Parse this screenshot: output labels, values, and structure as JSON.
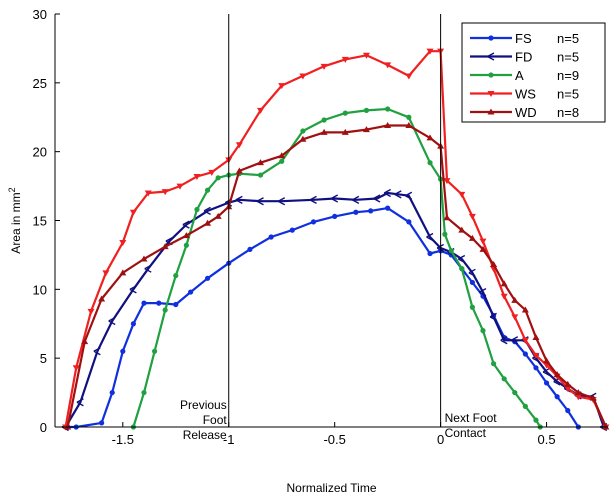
{
  "chart_data": {
    "type": "line",
    "xlabel": "Normalized Time",
    "ylabel": "Area in mm",
    "ylabel_superscript": "2",
    "xlim": [
      -1.82,
      0.79
    ],
    "ylim": [
      0,
      30
    ],
    "xticks": [
      -1.5,
      -1,
      -0.5,
      0,
      0.5
    ],
    "xtick_labels": [
      "-1.5",
      "-1",
      "-0.5",
      "0",
      "0.5"
    ],
    "yticks": [
      0,
      5,
      10,
      15,
      20,
      25,
      30
    ],
    "ytick_labels": [
      "0",
      "5",
      "10",
      "15",
      "20",
      "25",
      "30"
    ],
    "grid": false,
    "legend_position": "top-right",
    "vlines": [
      {
        "x": -1,
        "label_lines": [
          "Previous",
          "Foot",
          "Release"
        ]
      },
      {
        "x": 0,
        "label_lines": [
          "Next Foot",
          "Contact"
        ]
      }
    ],
    "series": [
      {
        "name": "FS",
        "n_label": "n=5",
        "color": "#1030e0",
        "marker": "dot",
        "points": [
          [
            -1.76,
            0
          ],
          [
            -1.72,
            0
          ],
          [
            -1.6,
            0.3
          ],
          [
            -1.55,
            2.5
          ],
          [
            -1.5,
            5.5
          ],
          [
            -1.45,
            7.5
          ],
          [
            -1.4,
            9
          ],
          [
            -1.33,
            9
          ],
          [
            -1.25,
            8.9
          ],
          [
            -1.18,
            9.8
          ],
          [
            -1.1,
            10.8
          ],
          [
            -1.0,
            11.9
          ],
          [
            -0.9,
            12.9
          ],
          [
            -0.8,
            13.8
          ],
          [
            -0.7,
            14.3
          ],
          [
            -0.6,
            14.9
          ],
          [
            -0.5,
            15.3
          ],
          [
            -0.4,
            15.6
          ],
          [
            -0.33,
            15.7
          ],
          [
            -0.25,
            15.9
          ],
          [
            -0.15,
            14.9
          ],
          [
            -0.05,
            12.6
          ],
          [
            0.0,
            12.8
          ],
          [
            0.05,
            12.5
          ],
          [
            0.1,
            11.5
          ],
          [
            0.15,
            10.5
          ],
          [
            0.2,
            9.5
          ],
          [
            0.25,
            8.1
          ],
          [
            0.3,
            6.5
          ],
          [
            0.35,
            6.2
          ],
          [
            0.4,
            5.3
          ],
          [
            0.45,
            4.3
          ],
          [
            0.5,
            3.2
          ],
          [
            0.55,
            2.2
          ],
          [
            0.6,
            1.2
          ],
          [
            0.65,
            0
          ]
        ]
      },
      {
        "name": "FD",
        "n_label": "n=5",
        "color": "#101080",
        "marker": "arrow",
        "points": [
          [
            -1.77,
            0
          ],
          [
            -1.7,
            1.8
          ],
          [
            -1.62,
            5.5
          ],
          [
            -1.55,
            7.7
          ],
          [
            -1.45,
            10
          ],
          [
            -1.38,
            11.5
          ],
          [
            -1.28,
            13.5
          ],
          [
            -1.2,
            14.7
          ],
          [
            -1.1,
            15.7
          ],
          [
            -1.0,
            16.3
          ],
          [
            -0.95,
            16.5
          ],
          [
            -0.85,
            16.4
          ],
          [
            -0.75,
            16.4
          ],
          [
            -0.6,
            16.5
          ],
          [
            -0.5,
            16.6
          ],
          [
            -0.4,
            16.5
          ],
          [
            -0.3,
            16.6
          ],
          [
            -0.25,
            17
          ],
          [
            -0.2,
            16.9
          ],
          [
            -0.15,
            16.8
          ],
          [
            -0.05,
            13.8
          ],
          [
            0.0,
            13
          ],
          [
            0.05,
            12.7
          ],
          [
            0.1,
            12.2
          ],
          [
            0.15,
            11.2
          ],
          [
            0.2,
            9.8
          ],
          [
            0.25,
            8
          ],
          [
            0.3,
            6.3
          ],
          [
            0.35,
            6.3
          ],
          [
            0.4,
            6.3
          ],
          [
            0.45,
            5
          ],
          [
            0.5,
            4
          ],
          [
            0.55,
            3.3
          ],
          [
            0.6,
            2.8
          ],
          [
            0.65,
            2.3
          ],
          [
            0.72,
            2.2
          ],
          [
            0.77,
            0
          ]
        ]
      },
      {
        "name": "A",
        "n_label": "n=9",
        "color": "#20a040",
        "marker": "dot",
        "points": [
          [
            -1.45,
            0
          ],
          [
            -1.4,
            2.5
          ],
          [
            -1.35,
            5.5
          ],
          [
            -1.3,
            8.5
          ],
          [
            -1.25,
            11
          ],
          [
            -1.2,
            13.2
          ],
          [
            -1.15,
            15.8
          ],
          [
            -1.1,
            17.2
          ],
          [
            -1.05,
            18.1
          ],
          [
            -1.0,
            18.3
          ],
          [
            -0.95,
            18.4
          ],
          [
            -0.85,
            18.3
          ],
          [
            -0.75,
            19.3
          ],
          [
            -0.65,
            21.5
          ],
          [
            -0.55,
            22.3
          ],
          [
            -0.45,
            22.8
          ],
          [
            -0.35,
            23.0
          ],
          [
            -0.25,
            23.1
          ],
          [
            -0.15,
            22.5
          ],
          [
            -0.05,
            19.2
          ],
          [
            0.0,
            18
          ],
          [
            0.02,
            14
          ],
          [
            0.05,
            12.8
          ],
          [
            0.1,
            11.5
          ],
          [
            0.15,
            8.7
          ],
          [
            0.2,
            7
          ],
          [
            0.25,
            4.6
          ],
          [
            0.3,
            3.5
          ],
          [
            0.35,
            2.5
          ],
          [
            0.4,
            1.5
          ],
          [
            0.45,
            0.5
          ],
          [
            0.47,
            0
          ]
        ]
      },
      {
        "name": "WS",
        "n_label": "n=5",
        "color": "#f02020",
        "marker": "tri-down",
        "points": [
          [
            -1.77,
            0
          ],
          [
            -1.72,
            4.3
          ],
          [
            -1.65,
            8.4
          ],
          [
            -1.58,
            11.2
          ],
          [
            -1.5,
            13.4
          ],
          [
            -1.45,
            15.6
          ],
          [
            -1.38,
            17.0
          ],
          [
            -1.3,
            17.1
          ],
          [
            -1.23,
            17.5
          ],
          [
            -1.15,
            18.2
          ],
          [
            -1.08,
            18.5
          ],
          [
            -1.0,
            19.4
          ],
          [
            -0.95,
            20.5
          ],
          [
            -0.85,
            23.0
          ],
          [
            -0.75,
            24.8
          ],
          [
            -0.65,
            25.5
          ],
          [
            -0.55,
            26.2
          ],
          [
            -0.45,
            26.7
          ],
          [
            -0.35,
            27.0
          ],
          [
            -0.25,
            26.3
          ],
          [
            -0.15,
            25.5
          ],
          [
            -0.05,
            27.3
          ],
          [
            0.0,
            27.3
          ],
          [
            0.03,
            17.9
          ],
          [
            0.1,
            16.9
          ],
          [
            0.15,
            15.3
          ],
          [
            0.2,
            13.5
          ],
          [
            0.25,
            11.5
          ],
          [
            0.3,
            9.5
          ],
          [
            0.35,
            8.0
          ],
          [
            0.4,
            6.3
          ],
          [
            0.45,
            5.2
          ],
          [
            0.5,
            4.5
          ],
          [
            0.55,
            3.7
          ],
          [
            0.6,
            2.8
          ],
          [
            0.65,
            2.2
          ],
          [
            0.72,
            2.0
          ],
          [
            0.78,
            0
          ]
        ]
      },
      {
        "name": "WD",
        "n_label": "n=8",
        "color": "#a01010",
        "marker": "tri-up",
        "points": [
          [
            -1.76,
            0
          ],
          [
            -1.68,
            6.2
          ],
          [
            -1.6,
            9.3
          ],
          [
            -1.5,
            11.2
          ],
          [
            -1.4,
            12.2
          ],
          [
            -1.3,
            13.1
          ],
          [
            -1.2,
            13.9
          ],
          [
            -1.1,
            14.8
          ],
          [
            -1.05,
            15.3
          ],
          [
            -1.0,
            16
          ],
          [
            -0.95,
            18.6
          ],
          [
            -0.85,
            19.2
          ],
          [
            -0.75,
            19.7
          ],
          [
            -0.65,
            20.9
          ],
          [
            -0.55,
            21.4
          ],
          [
            -0.45,
            21.4
          ],
          [
            -0.35,
            21.6
          ],
          [
            -0.25,
            21.9
          ],
          [
            -0.15,
            21.9
          ],
          [
            -0.05,
            21
          ],
          [
            0.0,
            20.4
          ],
          [
            0.03,
            15.2
          ],
          [
            0.1,
            14.3
          ],
          [
            0.15,
            13.7
          ],
          [
            0.2,
            12.9
          ],
          [
            0.25,
            11.8
          ],
          [
            0.3,
            10.4
          ],
          [
            0.35,
            9.2
          ],
          [
            0.4,
            8.5
          ],
          [
            0.45,
            6.5
          ],
          [
            0.5,
            4.8
          ],
          [
            0.55,
            3.8
          ],
          [
            0.6,
            3.1
          ],
          [
            0.65,
            2.5
          ],
          [
            0.72,
            2.1
          ],
          [
            0.78,
            0
          ]
        ]
      }
    ]
  }
}
